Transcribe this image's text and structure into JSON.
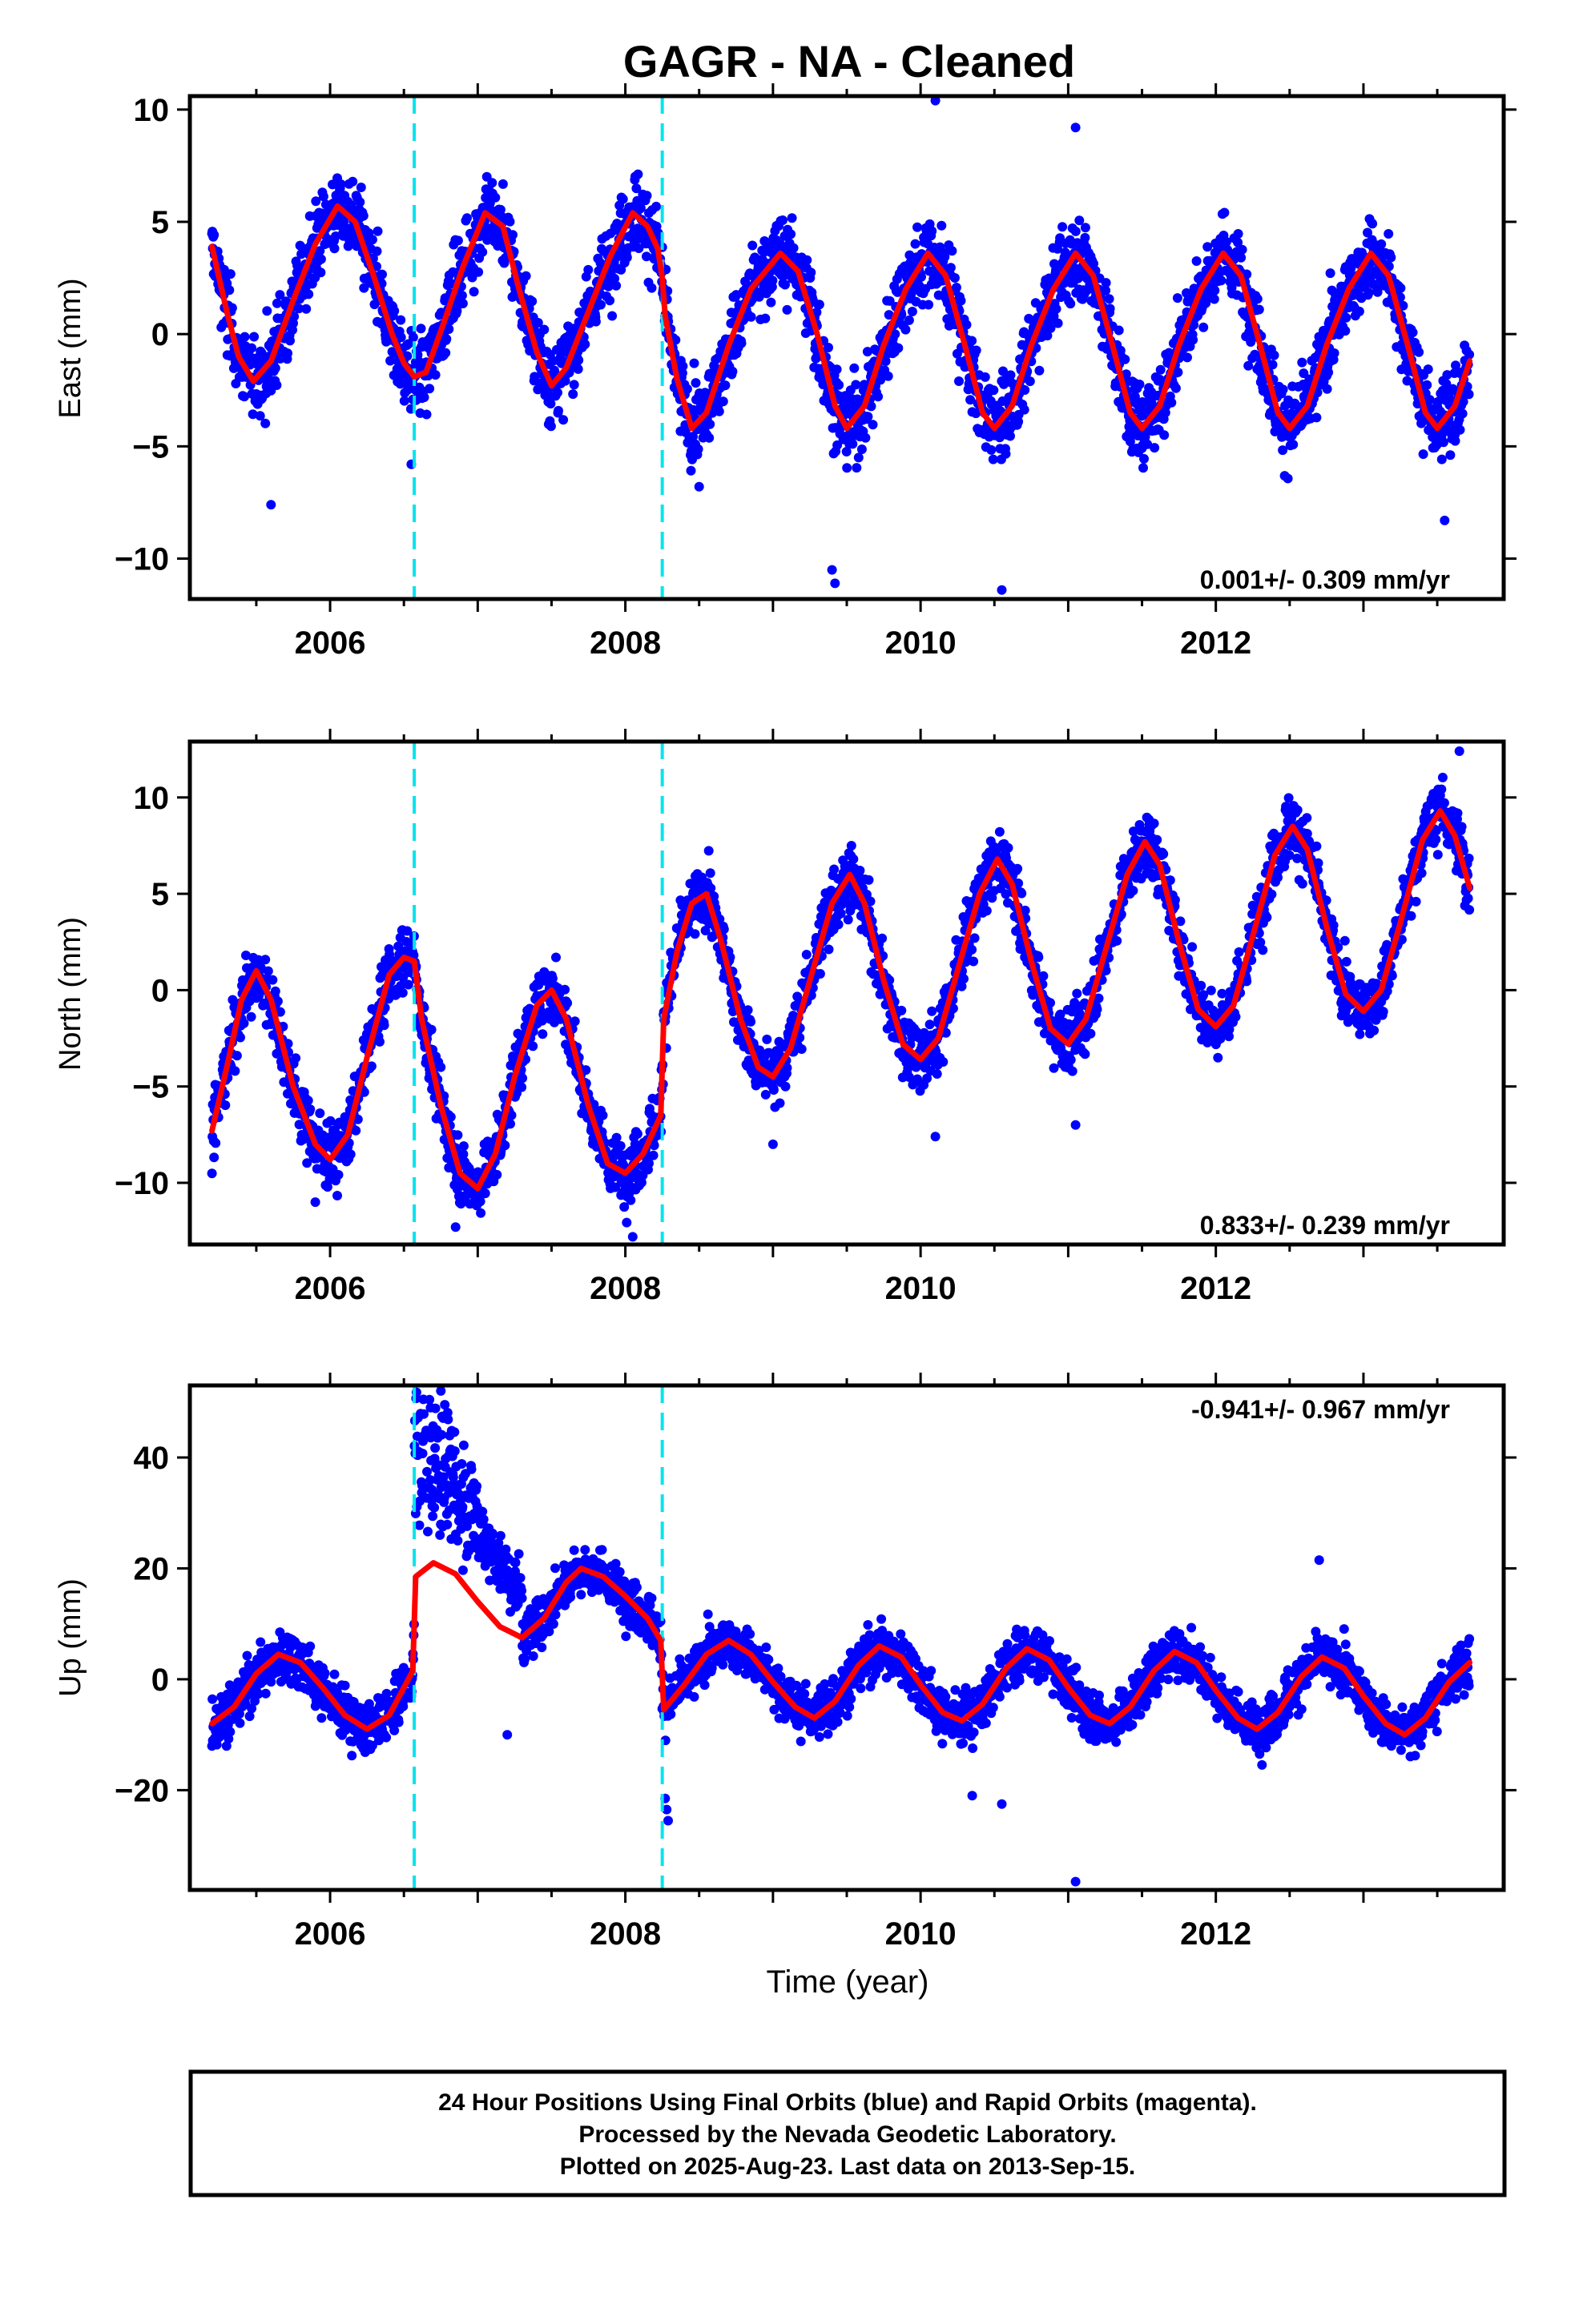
{
  "title": "GAGR  - NA - Cleaned",
  "colors": {
    "data": "#0000ff",
    "model": "#ff0000",
    "offset": "#00e5ee",
    "frame": "#000000"
  },
  "chart_data": [
    {
      "type": "scatter",
      "ylabel": "East (mm)",
      "rate_label": "0.001+/- 0.309 mm/yr",
      "xlim": [
        2005.05,
        2013.95
      ],
      "ylim": [
        -11.8,
        10.6
      ],
      "yticks": [
        10,
        5,
        0,
        -5,
        -10
      ],
      "ytick_labels": [
        "10",
        "5",
        "0",
        "−5",
        "−10"
      ],
      "xticks": [
        2006,
        2008,
        2010,
        2012
      ],
      "xtick_labels": [
        "2006",
        "2008",
        "2010",
        "2012"
      ],
      "offsets": [
        2006.57,
        2008.25
      ],
      "model": [
        [
          2005.2,
          3.9
        ],
        [
          2005.3,
          1.0
        ],
        [
          2005.38,
          -1.0
        ],
        [
          2005.48,
          -2.1
        ],
        [
          2005.6,
          -1.2
        ],
        [
          2005.75,
          1.5
        ],
        [
          2005.9,
          4.0
        ],
        [
          2006.05,
          5.7
        ],
        [
          2006.17,
          5.0
        ],
        [
          2006.3,
          2.5
        ],
        [
          2006.42,
          0.0
        ],
        [
          2006.5,
          -1.3
        ],
        [
          2006.57,
          -1.9
        ],
        [
          2006.65,
          -1.7
        ],
        [
          2006.77,
          0.5
        ],
        [
          2006.9,
          3.0
        ],
        [
          2007.05,
          5.4
        ],
        [
          2007.17,
          4.8
        ],
        [
          2007.28,
          2.0
        ],
        [
          2007.4,
          -0.8
        ],
        [
          2007.5,
          -2.3
        ],
        [
          2007.6,
          -1.5
        ],
        [
          2007.75,
          1.0
        ],
        [
          2007.9,
          3.5
        ],
        [
          2008.05,
          5.4
        ],
        [
          2008.15,
          4.8
        ],
        [
          2008.22,
          3.8
        ],
        [
          2008.25,
          2.5
        ],
        [
          2008.27,
          0.8
        ],
        [
          2008.35,
          -2.0
        ],
        [
          2008.45,
          -4.2
        ],
        [
          2008.55,
          -3.5
        ],
        [
          2008.7,
          -0.5
        ],
        [
          2008.85,
          2.0
        ],
        [
          2009.05,
          3.6
        ],
        [
          2009.17,
          2.8
        ],
        [
          2009.3,
          0.0
        ],
        [
          2009.42,
          -3.2
        ],
        [
          2009.5,
          -4.2
        ],
        [
          2009.62,
          -3.2
        ],
        [
          2009.75,
          -0.5
        ],
        [
          2009.9,
          2.0
        ],
        [
          2010.05,
          3.6
        ],
        [
          2010.17,
          2.6
        ],
        [
          2010.3,
          -0.5
        ],
        [
          2010.42,
          -3.5
        ],
        [
          2010.5,
          -4.2
        ],
        [
          2010.62,
          -3.2
        ],
        [
          2010.75,
          -0.5
        ],
        [
          2010.9,
          2.0
        ],
        [
          2011.05,
          3.6
        ],
        [
          2011.17,
          2.6
        ],
        [
          2011.3,
          -0.5
        ],
        [
          2011.42,
          -3.5
        ],
        [
          2011.5,
          -4.2
        ],
        [
          2011.62,
          -3.2
        ],
        [
          2011.75,
          -0.5
        ],
        [
          2011.9,
          2.0
        ],
        [
          2012.05,
          3.6
        ],
        [
          2012.17,
          2.6
        ],
        [
          2012.3,
          -0.5
        ],
        [
          2012.42,
          -3.5
        ],
        [
          2012.5,
          -4.2
        ],
        [
          2012.62,
          -3.2
        ],
        [
          2012.75,
          -0.5
        ],
        [
          2012.9,
          2.0
        ],
        [
          2013.05,
          3.6
        ],
        [
          2013.17,
          2.6
        ],
        [
          2013.3,
          -0.5
        ],
        [
          2013.42,
          -3.5
        ],
        [
          2013.5,
          -4.2
        ],
        [
          2013.62,
          -3.2
        ],
        [
          2013.72,
          -1.2
        ]
      ],
      "scatter": {
        "sigma": 1.5,
        "outliers": [
          [
            2005.6,
            -7.6
          ],
          [
            2006.55,
            -5.8
          ],
          [
            2008.5,
            -6.8
          ],
          [
            2009.4,
            -10.5
          ],
          [
            2009.42,
            -11.1
          ],
          [
            2010.1,
            10.4
          ],
          [
            2010.55,
            -11.4
          ],
          [
            2011.05,
            9.2
          ],
          [
            2013.55,
            -8.3
          ]
        ]
      }
    },
    {
      "type": "scatter",
      "ylabel": "North (mm)",
      "rate_label": "0.833+/- 0.239 mm/yr",
      "xlim": [
        2005.05,
        2013.95
      ],
      "ylim": [
        -13.2,
        12.9
      ],
      "yticks": [
        10,
        5,
        0,
        -5,
        -10
      ],
      "ytick_labels": [
        "10",
        "5",
        "0",
        "−5",
        "−10"
      ],
      "xticks": [
        2006,
        2008,
        2010,
        2012
      ],
      "xtick_labels": [
        "2006",
        "2008",
        "2010",
        "2012"
      ],
      "offsets": [
        2006.57,
        2008.25
      ],
      "model": [
        [
          2005.2,
          -7.3
        ],
        [
          2005.3,
          -4.0
        ],
        [
          2005.4,
          -0.5
        ],
        [
          2005.5,
          1.0
        ],
        [
          2005.6,
          -0.5
        ],
        [
          2005.75,
          -5.0
        ],
        [
          2005.9,
          -8.0
        ],
        [
          2006.0,
          -8.8
        ],
        [
          2006.12,
          -7.5
        ],
        [
          2006.25,
          -3.5
        ],
        [
          2006.4,
          0.8
        ],
        [
          2006.5,
          1.7
        ],
        [
          2006.57,
          1.5
        ],
        [
          2006.62,
          -1.5
        ],
        [
          2006.75,
          -6.0
        ],
        [
          2006.88,
          -9.5
        ],
        [
          2007.0,
          -10.3
        ],
        [
          2007.12,
          -8.5
        ],
        [
          2007.25,
          -4.5
        ],
        [
          2007.4,
          -0.8
        ],
        [
          2007.5,
          0.0
        ],
        [
          2007.6,
          -1.5
        ],
        [
          2007.75,
          -6.0
        ],
        [
          2007.88,
          -9.0
        ],
        [
          2008.0,
          -9.5
        ],
        [
          2008.12,
          -8.5
        ],
        [
          2008.24,
          -6.5
        ],
        [
          2008.26,
          -1.5
        ],
        [
          2008.35,
          2.0
        ],
        [
          2008.45,
          4.5
        ],
        [
          2008.55,
          5.0
        ],
        [
          2008.65,
          2.5
        ],
        [
          2008.78,
          -1.5
        ],
        [
          2008.9,
          -4.0
        ],
        [
          2009.0,
          -4.5
        ],
        [
          2009.12,
          -3.0
        ],
        [
          2009.25,
          0.5
        ],
        [
          2009.4,
          4.5
        ],
        [
          2009.52,
          6.0
        ],
        [
          2009.62,
          4.5
        ],
        [
          2009.75,
          0.5
        ],
        [
          2009.88,
          -2.8
        ],
        [
          2010.0,
          -3.6
        ],
        [
          2010.12,
          -2.5
        ],
        [
          2010.25,
          1.0
        ],
        [
          2010.4,
          5.0
        ],
        [
          2010.52,
          6.8
        ],
        [
          2010.62,
          5.5
        ],
        [
          2010.75,
          1.5
        ],
        [
          2010.88,
          -2.0
        ],
        [
          2011.0,
          -2.8
        ],
        [
          2011.12,
          -1.5
        ],
        [
          2011.25,
          2.0
        ],
        [
          2011.4,
          6.0
        ],
        [
          2011.52,
          7.7
        ],
        [
          2011.62,
          6.5
        ],
        [
          2011.75,
          2.5
        ],
        [
          2011.88,
          -1.0
        ],
        [
          2012.0,
          -1.9
        ],
        [
          2012.12,
          -0.8
        ],
        [
          2012.25,
          2.8
        ],
        [
          2012.4,
          7.0
        ],
        [
          2012.52,
          8.5
        ],
        [
          2012.62,
          7.3
        ],
        [
          2012.75,
          3.3
        ],
        [
          2012.88,
          -0.2
        ],
        [
          2013.0,
          -1.1
        ],
        [
          2013.12,
          0.0
        ],
        [
          2013.25,
          3.5
        ],
        [
          2013.4,
          7.8
        ],
        [
          2013.52,
          9.3
        ],
        [
          2013.62,
          8.0
        ],
        [
          2013.72,
          5.3
        ]
      ],
      "scatter": {
        "sigma": 1.4,
        "outliers": [
          [
            2005.9,
            -11.0
          ],
          [
            2006.85,
            -12.3
          ],
          [
            2008.05,
            -12.8
          ],
          [
            2009.0,
            -8.0
          ],
          [
            2010.1,
            -7.6
          ],
          [
            2011.05,
            -7.0
          ],
          [
            2013.65,
            12.4
          ]
        ]
      }
    },
    {
      "type": "scatter",
      "ylabel": "Up (mm)",
      "xlabel": "Time (year)",
      "rate_label": "-0.941+/- 0.967 mm/yr",
      "xlim": [
        2005.05,
        2013.95
      ],
      "ylim": [
        -38,
        53
      ],
      "yticks": [
        40,
        20,
        0,
        -20
      ],
      "ytick_labels": [
        "40",
        "20",
        "0",
        "−20"
      ],
      "xticks": [
        2006,
        2008,
        2010,
        2012
      ],
      "xtick_labels": [
        "2006",
        "2008",
        "2010",
        "2012"
      ],
      "offsets": [
        2006.57,
        2008.25
      ],
      "model": [
        [
          2005.2,
          -8.0
        ],
        [
          2005.35,
          -5.0
        ],
        [
          2005.5,
          1.0
        ],
        [
          2005.65,
          4.5
        ],
        [
          2005.8,
          3.0
        ],
        [
          2005.95,
          -1.5
        ],
        [
          2006.1,
          -6.5
        ],
        [
          2006.25,
          -9.0
        ],
        [
          2006.4,
          -6.5
        ],
        [
          2006.56,
          1.5
        ],
        [
          2006.58,
          18.5
        ],
        [
          2006.7,
          21.0
        ],
        [
          2006.85,
          19.0
        ],
        [
          2007.0,
          14.0
        ],
        [
          2007.15,
          9.5
        ],
        [
          2007.3,
          7.5
        ],
        [
          2007.45,
          11.0
        ],
        [
          2007.6,
          17.5
        ],
        [
          2007.7,
          20.0
        ],
        [
          2007.85,
          18.5
        ],
        [
          2008.0,
          15.0
        ],
        [
          2008.15,
          11.0
        ],
        [
          2008.24,
          7.0
        ],
        [
          2008.26,
          -5.5
        ],
        [
          2008.4,
          -1.0
        ],
        [
          2008.55,
          4.5
        ],
        [
          2008.7,
          7.0
        ],
        [
          2008.85,
          4.5
        ],
        [
          2009.0,
          -0.5
        ],
        [
          2009.15,
          -5.0
        ],
        [
          2009.28,
          -7.0
        ],
        [
          2009.42,
          -4.0
        ],
        [
          2009.58,
          2.5
        ],
        [
          2009.72,
          6.0
        ],
        [
          2009.87,
          4.0
        ],
        [
          2010.0,
          -1.0
        ],
        [
          2010.15,
          -6.0
        ],
        [
          2010.28,
          -7.5
        ],
        [
          2010.42,
          -4.5
        ],
        [
          2010.58,
          2.0
        ],
        [
          2010.72,
          5.5
        ],
        [
          2010.87,
          3.5
        ],
        [
          2011.0,
          -1.5
        ],
        [
          2011.15,
          -6.5
        ],
        [
          2011.28,
          -8.0
        ],
        [
          2011.42,
          -5.0
        ],
        [
          2011.58,
          1.5
        ],
        [
          2011.72,
          5.0
        ],
        [
          2011.87,
          3.0
        ],
        [
          2012.0,
          -2.0
        ],
        [
          2012.15,
          -7.0
        ],
        [
          2012.28,
          -9.0
        ],
        [
          2012.42,
          -6.0
        ],
        [
          2012.58,
          0.5
        ],
        [
          2012.72,
          4.0
        ],
        [
          2012.87,
          2.0
        ],
        [
          2013.0,
          -3.0
        ],
        [
          2013.15,
          -8.0
        ],
        [
          2013.28,
          -10.0
        ],
        [
          2013.42,
          -7.0
        ],
        [
          2013.58,
          -0.5
        ],
        [
          2013.72,
          3.0
        ]
      ],
      "scatter": {
        "sigma": 3.8,
        "outliers": [
          [
            2006.68,
            49
          ],
          [
            2006.75,
            52
          ],
          [
            2007.2,
            -10.0
          ],
          [
            2008.27,
            -21.5
          ],
          [
            2008.28,
            -23.5
          ],
          [
            2008.29,
            -25.5
          ],
          [
            2010.35,
            -21.0
          ],
          [
            2010.55,
            -22.5
          ],
          [
            2011.05,
            -36.5
          ],
          [
            2012.7,
            21.5
          ]
        ]
      }
    }
  ],
  "caption": {
    "line1": "24 Hour Positions Using Final Orbits (blue) and Rapid Orbits (magenta).",
    "line2": "Processed by the Nevada Geodetic Laboratory.",
    "line3": "Plotted on 2025-Aug-23. Last data on 2013-Sep-15."
  }
}
